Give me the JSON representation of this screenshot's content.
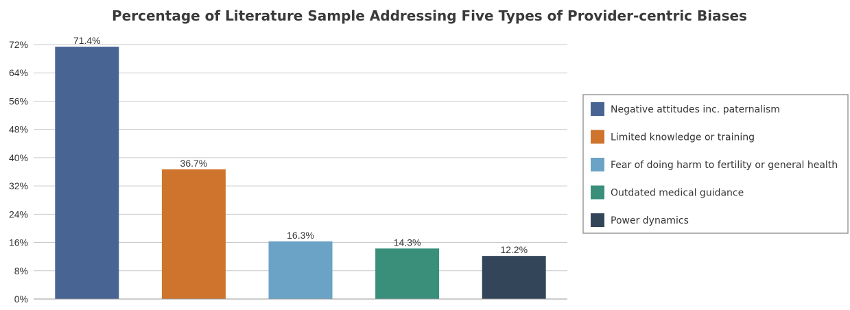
{
  "chart_data": {
    "type": "bar",
    "title": "Percentage of Literature Sample Addressing Five Types of Provider-centric Biases",
    "xlabel": "",
    "ylabel": "",
    "ylim": [
      0,
      72
    ],
    "y_ticks": [
      "0%",
      "8%",
      "16%",
      "24%",
      "32%",
      "40%",
      "48%",
      "56%",
      "64%",
      "72%"
    ],
    "y_tick_values": [
      0,
      8,
      16,
      24,
      32,
      40,
      48,
      56,
      64,
      72
    ],
    "grid": true,
    "legend_position": "right",
    "categories": [
      "Negative attitudes inc. paternalism",
      "Limited knowledge or training",
      "Fear of doing harm to fertility or general health",
      "Outdated medical guidance",
      "Power dynamics"
    ],
    "values": [
      71.4,
      36.7,
      16.3,
      14.3,
      12.2
    ],
    "data_labels": [
      "71.4%",
      "36.7%",
      "16.3%",
      "14.3%",
      "12.2%"
    ],
    "colors": [
      "#476493",
      "#cf742c",
      "#6aa3c6",
      "#3a8f7b",
      "#334659"
    ]
  }
}
